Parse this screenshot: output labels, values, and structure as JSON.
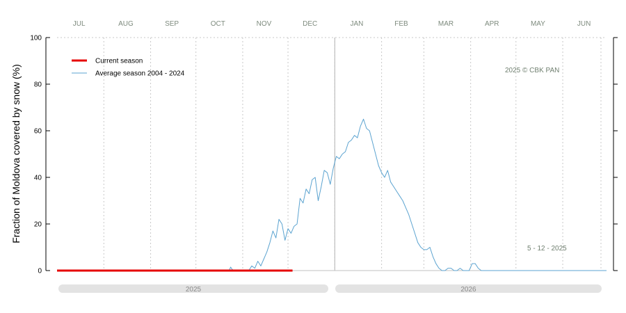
{
  "chart_data": {
    "type": "line",
    "ylabel": "Fraction of  Moldova  covered by snow (%)",
    "ylim": [
      0,
      100
    ],
    "yticks": [
      0,
      20,
      40,
      60,
      80,
      100
    ],
    "months": [
      "JUL",
      "AUG",
      "SEP",
      "OCT",
      "NOV",
      "DEC",
      "JAN",
      "FEB",
      "MAR",
      "APR",
      "MAY",
      "JUN"
    ],
    "season_years": [
      "2025",
      "2026"
    ],
    "copyright": "2025  © CBK PAN",
    "date_stamp": "5 - 12 - 2025",
    "grid": true,
    "legend_position": "top-left",
    "series": [
      {
        "name": "Current season",
        "color": "#e60000",
        "x": [
          1,
          157
        ],
        "y": [
          0,
          0
        ]
      },
      {
        "name": "Average season 2004 - 2024",
        "color": "#5ba3d0",
        "x": [
          1,
          115,
          116,
          117,
          118,
          120,
          128,
          130,
          132,
          134,
          136,
          138,
          140,
          142,
          144,
          146,
          148,
          150,
          152,
          154,
          156,
          158,
          160,
          162,
          164,
          166,
          168,
          170,
          172,
          174,
          176,
          178,
          180,
          182,
          184,
          186,
          188,
          190,
          192,
          194,
          196,
          198,
          200,
          202,
          204,
          206,
          208,
          210,
          212,
          214,
          216,
          218,
          220,
          222,
          224,
          226,
          228,
          230,
          232,
          234,
          236,
          238,
          240,
          242,
          244,
          246,
          248,
          250,
          252,
          254,
          256,
          258,
          260,
          262,
          264,
          266,
          268,
          270,
          272,
          274,
          276,
          278,
          280,
          282,
          284,
          286,
          288,
          290,
          292,
          294,
          296,
          298,
          300,
          365
        ],
        "y": [
          0,
          0,
          1.5,
          0.5,
          0,
          0,
          0,
          2,
          1,
          4,
          2,
          5,
          8,
          12,
          17,
          14,
          22,
          20,
          13,
          18,
          16,
          19,
          20,
          31,
          29,
          35,
          33,
          39,
          40,
          30,
          36,
          43,
          42,
          37,
          44,
          49,
          48,
          50,
          51,
          55,
          56,
          58,
          57,
          62,
          65,
          61,
          60,
          55,
          50,
          45,
          42,
          40,
          43,
          38,
          36,
          34,
          32,
          30,
          27,
          24,
          20,
          16,
          12,
          10,
          9,
          9,
          10,
          6,
          3,
          1,
          0,
          0,
          1,
          1,
          0,
          0,
          1,
          0,
          0,
          0,
          3,
          3,
          1,
          0,
          0,
          0,
          0,
          0,
          0,
          0,
          0,
          0,
          0,
          0
        ]
      }
    ]
  }
}
